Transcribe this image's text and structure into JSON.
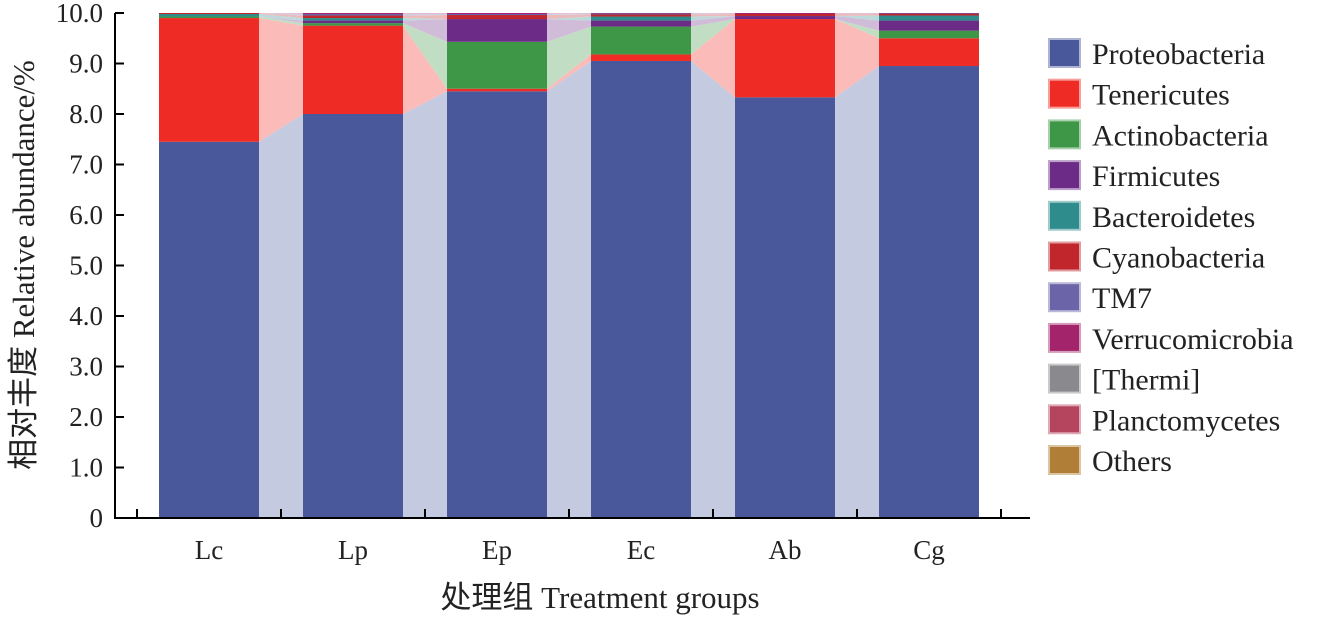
{
  "chart_data": {
    "type": "bar",
    "stacked": true,
    "categories": [
      "Lc",
      "Lp",
      "Ep",
      "Ec",
      "Ab",
      "Cg"
    ],
    "xlabel": "处理组 Treatment groups",
    "ylabel": "相对丰度 Relative abundance/%",
    "ylim": [
      0,
      10
    ],
    "yticks": [
      "0",
      "1.0",
      "2.0",
      "3.0",
      "4.0",
      "5.0",
      "6.0",
      "7.0",
      "8.0",
      "9.0",
      "10.0"
    ],
    "grid": false,
    "legend_position": "right",
    "series": [
      {
        "name": "Proteobacteria",
        "color": "#48589a",
        "values": [
          7.45,
          8.0,
          8.45,
          9.05,
          8.33,
          8.95
        ]
      },
      {
        "name": "Tenericutes",
        "color": "#ee2b24",
        "values": [
          2.45,
          1.75,
          0.05,
          0.13,
          1.55,
          0.55
        ]
      },
      {
        "name": "Actinobacteria",
        "color": "#3d9747",
        "values": [
          0.03,
          0.05,
          0.93,
          0.55,
          0.0,
          0.15
        ]
      },
      {
        "name": "Firmicutes",
        "color": "#6b2b86",
        "values": [
          0.0,
          0.05,
          0.45,
          0.12,
          0.06,
          0.2
        ]
      },
      {
        "name": "Bacteroidetes",
        "color": "#2f8c8c",
        "values": [
          0.05,
          0.05,
          0.0,
          0.08,
          0.0,
          0.1
        ]
      },
      {
        "name": "Cyanobacteria",
        "color": "#c0262c",
        "values": [
          0.02,
          0.05,
          0.08,
          0.04,
          0.04,
          0.03
        ]
      },
      {
        "name": "TM7",
        "color": "#6b64a8",
        "values": [
          0.0,
          0.03,
          0.02,
          0.02,
          0.0,
          0.01
        ]
      },
      {
        "name": "Verrucomicrobia",
        "color": "#a3246a",
        "values": [
          0.0,
          0.02,
          0.02,
          0.01,
          0.02,
          0.01
        ]
      },
      {
        "name": "[Thermi]",
        "color": "#8a8a8e",
        "values": [
          0.0,
          0.0,
          0.0,
          0.0,
          0.0,
          0.0
        ]
      },
      {
        "name": "Planctomycetes",
        "color": "#b5455e",
        "values": [
          0.0,
          0.0,
          0.0,
          0.0,
          0.0,
          0.0
        ]
      },
      {
        "name": "Others",
        "color": "#b17e38",
        "values": [
          0.0,
          0.0,
          0.0,
          0.0,
          0.0,
          0.0
        ]
      }
    ]
  }
}
